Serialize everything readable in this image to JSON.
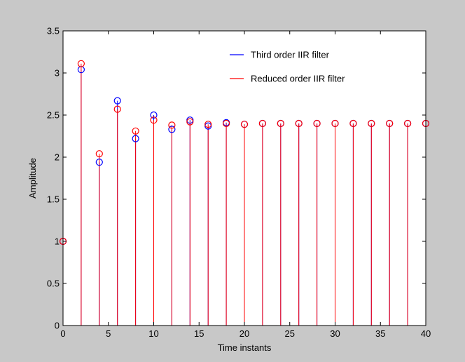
{
  "chart_data": {
    "type": "stem",
    "xlabel": "Time instants",
    "ylabel": "Amplitude",
    "xlim": [
      0,
      40
    ],
    "ylim": [
      0,
      3.5
    ],
    "xticks": [
      0,
      5,
      10,
      15,
      20,
      25,
      30,
      35,
      40
    ],
    "yticks": [
      0,
      0.5,
      1,
      1.5,
      2,
      2.5,
      3,
      3.5
    ],
    "xtick_labels": [
      "0",
      "5",
      "10",
      "15",
      "20",
      "25",
      "30",
      "35",
      "40"
    ],
    "ytick_labels": [
      "0",
      "0.5",
      "1",
      "1.5",
      "2",
      "2.5",
      "3",
      "3.5"
    ],
    "grid": false,
    "legend_position": "top-right",
    "x": [
      0,
      2,
      4,
      6,
      8,
      10,
      12,
      14,
      16,
      18,
      20,
      22,
      24,
      26,
      28,
      30,
      32,
      34,
      36,
      38,
      40
    ],
    "series": [
      {
        "name": "Third order IIR filter",
        "color": "#0000ff",
        "marker": "circle",
        "values": [
          1.0,
          3.04,
          1.94,
          2.67,
          2.22,
          2.5,
          2.33,
          2.44,
          2.37,
          2.41,
          2.39,
          2.4,
          2.4,
          2.4,
          2.4,
          2.4,
          2.4,
          2.4,
          2.4,
          2.4,
          2.4
        ]
      },
      {
        "name": "Reduced order IIR filter",
        "color": "#ff0000",
        "marker": "circle",
        "values": [
          1.0,
          3.11,
          2.04,
          2.57,
          2.31,
          2.44,
          2.38,
          2.42,
          2.39,
          2.4,
          2.39,
          2.4,
          2.4,
          2.4,
          2.4,
          2.4,
          2.4,
          2.4,
          2.4,
          2.4,
          2.4
        ]
      }
    ]
  },
  "colors": {
    "figure_background": "#c8c8c8",
    "axes_background": "#ffffff",
    "axis_color": "#000000"
  }
}
